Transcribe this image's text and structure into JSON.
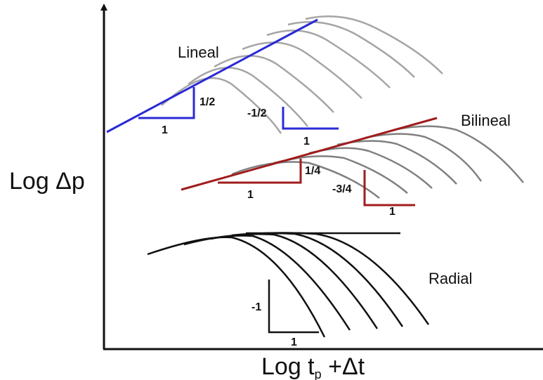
{
  "axes": {
    "y_label": "Log Δp",
    "x_label_main": "Log t",
    "x_label_sub": "p",
    "x_label_tail": " +Δt"
  },
  "regimes": {
    "linear": {
      "name": "Lineal",
      "color": "#2a2ad6",
      "curve_color": "#a5a5a5",
      "slope_up": {
        "rise": "1/2",
        "run": "1"
      },
      "slope_down": {
        "rise": "-1/2",
        "run": "1"
      }
    },
    "bilinear": {
      "name": "Bilineal",
      "color": "#a01c1c",
      "curve_color": "#808080",
      "slope_up": {
        "rise": "1/4",
        "run": "1"
      },
      "slope_down": {
        "rise": "-3/4",
        "run": "1"
      }
    },
    "radial": {
      "name": "Radial",
      "color": "#111111",
      "curve_color": "#111111",
      "slope_down": {
        "rise": "-1",
        "run": "1"
      }
    }
  }
}
